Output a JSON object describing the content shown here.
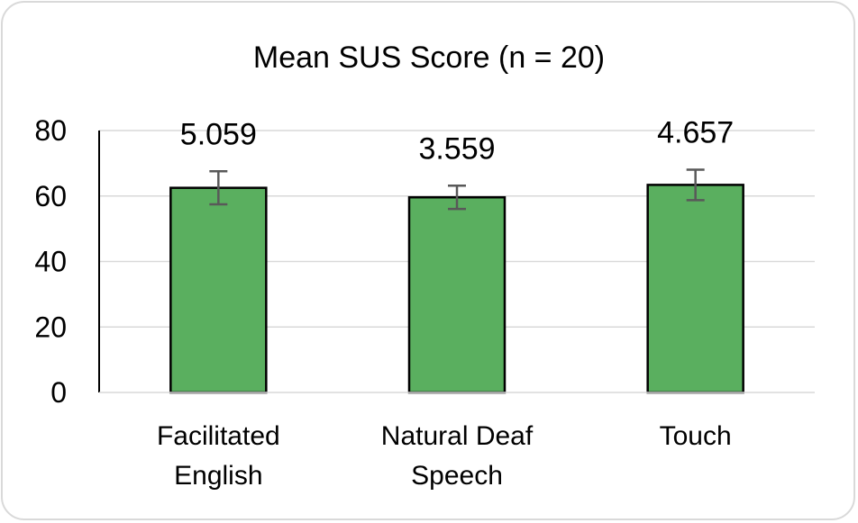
{
  "chart_data": {
    "type": "bar",
    "title": "Mean SUS Score (n = 20)",
    "xlabel": "",
    "ylabel": "",
    "categories": [
      "Facilitated English",
      "Natural Deaf Speech",
      "Touch"
    ],
    "category_lines": [
      [
        "Facilitated",
        "English"
      ],
      [
        "Natural Deaf",
        "Speech"
      ],
      [
        "Touch"
      ]
    ],
    "values": [
      62.5,
      59.6,
      63.4
    ],
    "error": [
      5.059,
      3.559,
      4.657
    ],
    "data_labels": [
      "5.059",
      "3.559",
      "4.657"
    ],
    "ylim": [
      0,
      80
    ],
    "yticks": [
      0,
      20,
      40,
      60,
      80
    ],
    "grid": true,
    "legend": "none",
    "bar_color": "#5aaf5f",
    "bar_edge_color": "#000000",
    "error_color": "#595959",
    "grid_color": "#d9d9d9"
  }
}
